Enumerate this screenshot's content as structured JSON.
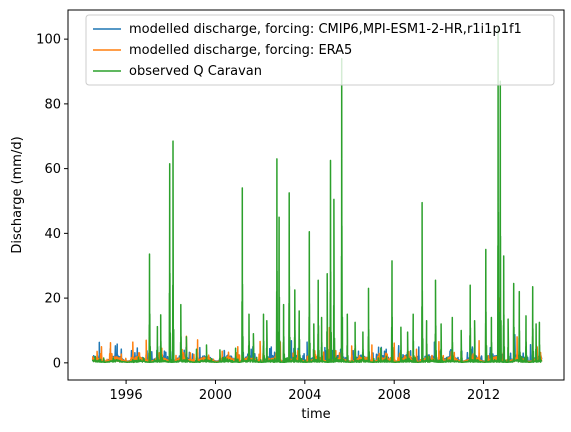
{
  "chart_data": {
    "type": "line",
    "title": "",
    "xlabel": "time",
    "ylabel": "Discharge (mm/d)",
    "xlim": [
      1993.4,
      2015.6
    ],
    "ylim": [
      -5.3,
      109
    ],
    "x_ticks": [
      1996,
      2000,
      2004,
      2008,
      2012
    ],
    "x_tick_labels": [
      "1996",
      "2000",
      "2004",
      "2008",
      "2012"
    ],
    "y_ticks": [
      0,
      20,
      40,
      60,
      80,
      100
    ],
    "y_tick_labels": [
      "0",
      "20",
      "40",
      "60",
      "80",
      "100"
    ],
    "legend_position": "upper-right",
    "x_start": 1994.5,
    "x_end": 2014.6,
    "series": [
      {
        "name": "modelled discharge, forcing: CMIP6,MPI-ESM1-2-HR,r1i1p1f1",
        "color": "#1f77b4",
        "base": 1.5,
        "peaks": [
          [
            1994.8,
            6.3
          ],
          [
            1995.6,
            5.8
          ],
          [
            1996.5,
            4.6
          ],
          [
            1997.4,
            4.8
          ],
          [
            1998.6,
            3.9
          ],
          [
            1999.3,
            4.7
          ],
          [
            2000.4,
            3.7
          ],
          [
            2001.6,
            4.2
          ],
          [
            2002.5,
            4.9
          ],
          [
            2003.4,
            6.8
          ],
          [
            2004.1,
            6.4
          ],
          [
            2004.9,
            4.7
          ],
          [
            2005.6,
            4.2
          ],
          [
            2006.4,
            3.6
          ],
          [
            2007.3,
            4.8
          ],
          [
            2008.2,
            5.3
          ],
          [
            2009.1,
            4.9
          ],
          [
            2009.8,
            6.4
          ],
          [
            2010.6,
            5.6
          ],
          [
            2011.5,
            4.9
          ],
          [
            2012.3,
            4.7
          ],
          [
            2013.4,
            8.7
          ],
          [
            2014.1,
            5.6
          ]
        ]
      },
      {
        "name": "modelled discharge, forcing: ERA5",
        "color": "#ff7f0e",
        "base": 1.2,
        "peaks": [
          [
            1994.9,
            5.0
          ],
          [
            1995.3,
            6.2
          ],
          [
            1996.3,
            6.4
          ],
          [
            1996.9,
            7.0
          ],
          [
            1997.6,
            4.5
          ],
          [
            1998.7,
            8.2
          ],
          [
            1999.2,
            7.1
          ],
          [
            2000.3,
            3.6
          ],
          [
            2001.0,
            5.0
          ],
          [
            2002.0,
            6.6
          ],
          [
            2002.9,
            6.4
          ],
          [
            2004.2,
            6.5
          ],
          [
            2005.1,
            10.9
          ],
          [
            2006.1,
            5.2
          ],
          [
            2007.0,
            5.5
          ],
          [
            2008.0,
            6.1
          ],
          [
            2009.0,
            4.2
          ],
          [
            2010.0,
            6.5
          ],
          [
            2011.0,
            4.4
          ],
          [
            2011.8,
            6.8
          ],
          [
            2012.7,
            20.0
          ],
          [
            2013.5,
            8.0
          ],
          [
            2014.4,
            4.9
          ]
        ]
      },
      {
        "name": "observed Q Caravan",
        "color": "#2ca02c",
        "base": 0.6,
        "peaks": [
          [
            1995.0,
            1.5
          ],
          [
            1996.3,
            1.0
          ],
          [
            1997.05,
            33.6
          ],
          [
            1997.4,
            11.2
          ],
          [
            1997.55,
            14.8
          ],
          [
            1997.95,
            61.5
          ],
          [
            1998.1,
            68.5
          ],
          [
            1998.45,
            18.0
          ],
          [
            1998.7,
            8.0
          ],
          [
            1999.15,
            4.2
          ],
          [
            1999.6,
            5.5
          ],
          [
            2000.2,
            4.0
          ],
          [
            2000.9,
            4.5
          ],
          [
            2001.2,
            54.0
          ],
          [
            2001.5,
            15.0
          ],
          [
            2001.7,
            9.0
          ],
          [
            2002.15,
            15.0
          ],
          [
            2002.3,
            13.0
          ],
          [
            2002.75,
            63.0
          ],
          [
            2002.85,
            45.0
          ],
          [
            2003.05,
            18.0
          ],
          [
            2003.3,
            52.5
          ],
          [
            2003.55,
            22.5
          ],
          [
            2003.75,
            16.0
          ],
          [
            2004.2,
            40.5
          ],
          [
            2004.4,
            12.0
          ],
          [
            2004.6,
            25.5
          ],
          [
            2004.75,
            14.0
          ],
          [
            2005.0,
            27.5
          ],
          [
            2005.15,
            62.5
          ],
          [
            2005.3,
            50.5
          ],
          [
            2005.65,
            94.0
          ],
          [
            2005.9,
            15.0
          ],
          [
            2006.25,
            12.5
          ],
          [
            2006.6,
            9.5
          ],
          [
            2006.85,
            23.0
          ],
          [
            2007.4,
            4.5
          ],
          [
            2007.9,
            31.5
          ],
          [
            2008.3,
            11.0
          ],
          [
            2008.6,
            9.5
          ],
          [
            2008.85,
            15.0
          ],
          [
            2009.25,
            49.5
          ],
          [
            2009.45,
            13.0
          ],
          [
            2009.85,
            25.5
          ],
          [
            2010.1,
            12.0
          ],
          [
            2010.6,
            14.0
          ],
          [
            2011.0,
            10.0
          ],
          [
            2011.4,
            24.0
          ],
          [
            2011.6,
            13.0
          ],
          [
            2012.1,
            35.0
          ],
          [
            2012.35,
            14.0
          ],
          [
            2012.65,
            103.5
          ],
          [
            2012.75,
            87.0
          ],
          [
            2012.9,
            33.0
          ],
          [
            2013.1,
            13.5
          ],
          [
            2013.35,
            24.5
          ],
          [
            2013.6,
            22.0
          ],
          [
            2013.9,
            14.5
          ],
          [
            2014.2,
            23.5
          ],
          [
            2014.35,
            12.0
          ],
          [
            2014.5,
            12.5
          ]
        ]
      }
    ]
  }
}
